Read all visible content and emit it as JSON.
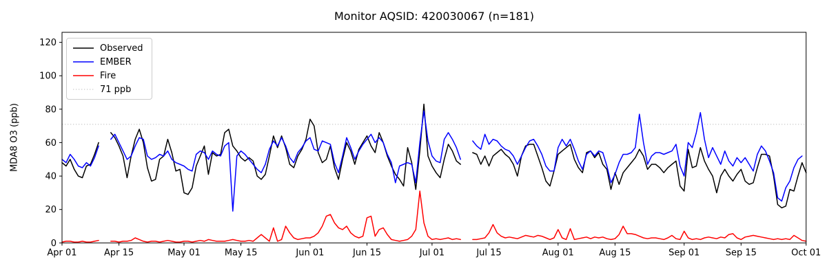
{
  "figure": {
    "title": "Monitor AQSID: 420030067 (n=181)",
    "background": "#ffffff"
  },
  "legend": {
    "entries": [
      {
        "label": "Observed",
        "color": "#000000",
        "style": "solid"
      },
      {
        "label": "EMBER",
        "color": "#0000ff",
        "style": "solid"
      },
      {
        "label": "Fire",
        "color": "#ff0000",
        "style": "solid"
      },
      {
        "label": "71 ppb",
        "color": "#d3d3d3",
        "style": "dotted"
      }
    ]
  },
  "chart_data": {
    "type": "line",
    "title": "Monitor AQSID: 420030067 (n=181)",
    "xlabel": "",
    "ylabel": "MDA8 O3 (ppb)",
    "ylim": [
      0,
      126
    ],
    "yticks": [
      0,
      20,
      40,
      60,
      80,
      100,
      120
    ],
    "grid": false,
    "legend_position": "upper-left",
    "x_unit": "days since Apr 01",
    "x_range_days": [
      0,
      183
    ],
    "xticks": {
      "days": [
        0,
        14,
        30,
        44,
        61,
        75,
        91,
        105,
        122,
        136,
        153,
        167,
        183
      ],
      "labels": [
        "Apr 01",
        "Apr 15",
        "May 01",
        "May 15",
        "Jun 01",
        "Jun 15",
        "Jul 01",
        "Jul 15",
        "Aug 01",
        "Aug 15",
        "Sep 01",
        "Sep 15",
        "Oct 01"
      ]
    },
    "threshold": {
      "value": 71,
      "label": "71 ppb",
      "color": "#d3d3d3",
      "style": "dotted"
    },
    "missing_days": [
      10,
      11,
      99,
      100
    ],
    "series": [
      {
        "name": "Observed",
        "color": "#000000",
        "values": [
          48,
          46,
          50,
          44,
          40,
          39,
          46,
          47,
          53,
          60,
          null,
          null,
          66,
          63,
          58,
          52,
          39,
          52,
          62,
          68,
          60,
          45,
          37,
          38,
          50,
          52,
          62,
          54,
          43,
          44,
          30,
          29,
          33,
          46,
          52,
          58,
          41,
          54,
          52,
          53,
          66,
          68,
          58,
          55,
          51,
          49,
          51,
          49,
          40,
          38,
          41,
          52,
          64,
          57,
          64,
          57,
          47,
          45,
          52,
          56,
          62,
          74,
          70,
          54,
          48,
          50,
          58,
          45,
          38,
          50,
          60,
          55,
          47,
          56,
          60,
          64,
          58,
          54,
          66,
          60,
          52,
          46,
          41,
          38,
          34,
          57,
          48,
          32,
          55,
          83,
          52,
          46,
          42,
          39,
          50,
          59,
          55,
          49,
          47,
          null,
          null,
          54,
          53,
          47,
          52,
          46,
          52,
          54,
          56,
          53,
          51,
          47,
          40,
          52,
          58,
          59,
          59,
          52,
          45,
          37,
          34,
          43,
          53,
          55,
          57,
          59,
          50,
          45,
          42,
          54,
          55,
          51,
          54,
          47,
          44,
          32,
          42,
          35,
          42,
          45,
          48,
          51,
          56,
          52,
          44,
          47,
          47,
          45,
          42,
          45,
          47,
          49,
          34,
          31,
          56,
          45,
          46,
          57,
          49,
          44,
          40,
          30,
          40,
          44,
          40,
          37,
          41,
          44,
          37,
          35,
          36,
          45,
          53,
          53,
          52,
          40,
          23,
          21,
          22,
          32,
          31,
          40,
          48,
          42
        ]
      },
      {
        "name": "EMBER",
        "color": "#0000ff",
        "values": [
          50,
          48,
          53,
          50,
          46,
          45,
          48,
          46,
          51,
          58,
          null,
          null,
          62,
          65,
          60,
          55,
          50,
          52,
          58,
          63,
          62,
          52,
          50,
          51,
          53,
          52,
          55,
          50,
          48,
          47,
          46,
          44,
          43,
          53,
          55,
          54,
          50,
          55,
          53,
          52,
          58,
          60,
          19,
          52,
          55,
          53,
          50,
          47,
          44,
          42,
          47,
          56,
          61,
          58,
          63,
          58,
          51,
          48,
          54,
          57,
          61,
          63,
          56,
          55,
          61,
          60,
          59,
          48,
          42,
          52,
          63,
          57,
          50,
          55,
          59,
          62,
          65,
          60,
          63,
          60,
          53,
          48,
          36,
          46,
          47,
          48,
          47,
          36,
          60,
          79,
          61,
          52,
          49,
          48,
          62,
          66,
          62,
          57,
          50,
          null,
          null,
          61,
          58,
          56,
          65,
          59,
          62,
          61,
          58,
          56,
          55,
          52,
          47,
          52,
          57,
          61,
          62,
          58,
          53,
          46,
          43,
          43,
          57,
          62,
          58,
          62,
          56,
          49,
          44,
          53,
          55,
          52,
          55,
          54,
          46,
          36,
          41,
          48,
          53,
          53,
          54,
          57,
          77,
          60,
          47,
          52,
          54,
          54,
          53,
          54,
          55,
          59,
          46,
          40,
          60,
          57,
          66,
          78,
          62,
          51,
          57,
          52,
          47,
          55,
          49,
          46,
          51,
          48,
          51,
          47,
          43,
          53,
          58,
          55,
          49,
          42,
          27,
          25,
          33,
          37,
          45,
          50,
          52,
          null
        ]
      },
      {
        "name": "Fire",
        "color": "#ff0000",
        "values": [
          0.5,
          1,
          1,
          0.5,
          0.5,
          1,
          0.5,
          0.5,
          1,
          1.5,
          null,
          null,
          1,
          1,
          0.5,
          1,
          1,
          1.5,
          3,
          2,
          1,
          0.5,
          1,
          1,
          0.5,
          1,
          1.5,
          1,
          0.5,
          0.5,
          1,
          1,
          0.5,
          1,
          1.5,
          1,
          2,
          1.5,
          1,
          1,
          1,
          1.5,
          2,
          1.5,
          1,
          1,
          1.5,
          1,
          3,
          5,
          3,
          1,
          9,
          1,
          2,
          10,
          6,
          3,
          2,
          2.5,
          3,
          3,
          4,
          6,
          10,
          16,
          17,
          12,
          9,
          8,
          10,
          6,
          4,
          3,
          4,
          15,
          16,
          4,
          8,
          9,
          5,
          2,
          1.5,
          1,
          1.5,
          2,
          4,
          8,
          31,
          12,
          4,
          2,
          2.5,
          2,
          2.5,
          3,
          2,
          2.5,
          2,
          null,
          null,
          2,
          2,
          2.5,
          3,
          6,
          11,
          6,
          4,
          3,
          3.5,
          3,
          2.5,
          3.5,
          4.5,
          4,
          3.5,
          4.5,
          4,
          3,
          2,
          3,
          8,
          3,
          2,
          8.5,
          2,
          2.5,
          3,
          3.5,
          2.5,
          3.5,
          3,
          3.5,
          2.5,
          2,
          2.5,
          5,
          10,
          5.5,
          5.5,
          5,
          4,
          3,
          2.5,
          3,
          3,
          2.5,
          2,
          3,
          4.5,
          2.5,
          2,
          7,
          3,
          2,
          2.5,
          2,
          3,
          3.5,
          3,
          2.5,
          3.5,
          3,
          5,
          5.5,
          3,
          2,
          3.5,
          4,
          4.5,
          4,
          3.5,
          3,
          2.5,
          2,
          2.5,
          2,
          2.5,
          2,
          4.5,
          3,
          1.5,
          1
        ]
      }
    ]
  }
}
